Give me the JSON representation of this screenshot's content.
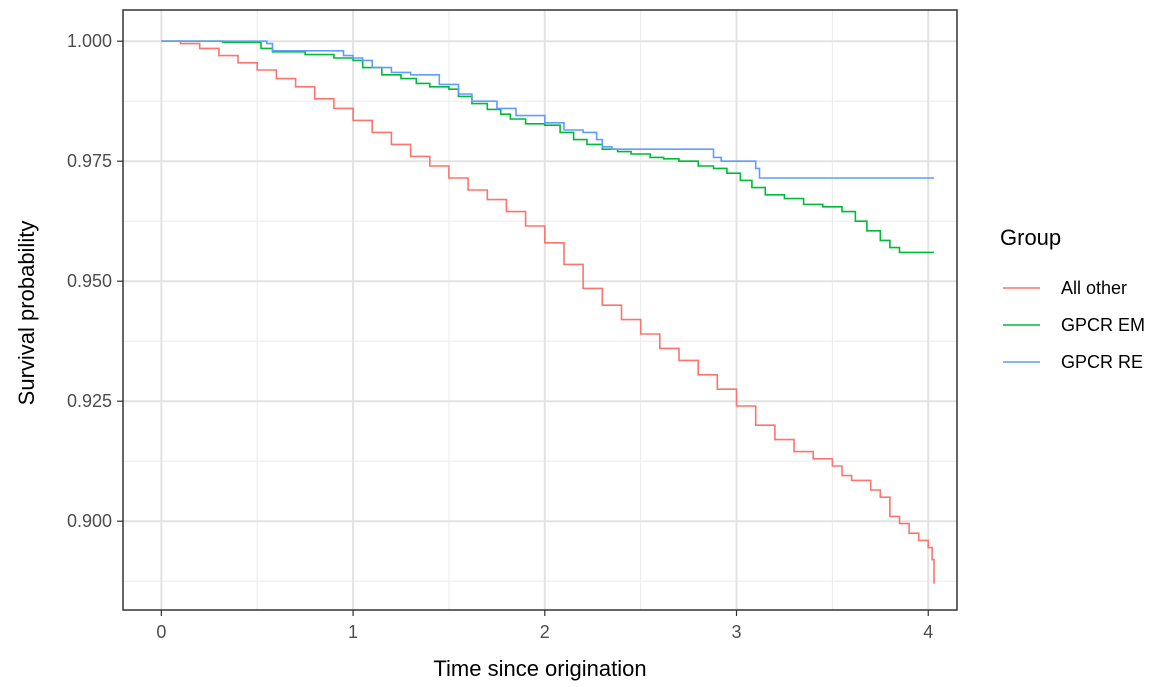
{
  "chart_data": {
    "type": "line",
    "subtype": "step",
    "title": "",
    "xlabel": "Time since origination",
    "ylabel": "Survival probability",
    "xlim": [
      -0.2,
      4.15
    ],
    "ylim": [
      0.8815,
      1.0065
    ],
    "xticks": [
      0,
      1,
      2,
      3,
      4
    ],
    "yticks": [
      0.9,
      0.925,
      0.95,
      0.975,
      1.0
    ],
    "ytick_labels": [
      "0.900",
      "0.925",
      "0.950",
      "0.975",
      "1.000"
    ],
    "xtick_labels": [
      "0",
      "1",
      "2",
      "3",
      "4"
    ],
    "grid": true,
    "legend": {
      "title": "Group",
      "position": "right",
      "entries": [
        "All other",
        "GPCR EM",
        "GPCR RE"
      ]
    },
    "series": [
      {
        "name": "All other",
        "color": "#F8766D",
        "x": [
          0,
          0.1,
          0.2,
          0.3,
          0.4,
          0.5,
          0.6,
          0.7,
          0.8,
          0.9,
          1.0,
          1.1,
          1.2,
          1.3,
          1.4,
          1.5,
          1.6,
          1.7,
          1.8,
          1.9,
          2.0,
          2.1,
          2.2,
          2.3,
          2.4,
          2.5,
          2.6,
          2.7,
          2.8,
          2.9,
          3.0,
          3.1,
          3.2,
          3.3,
          3.4,
          3.5,
          3.55,
          3.6,
          3.7,
          3.75,
          3.8,
          3.85,
          3.9,
          3.95,
          4.0,
          4.02,
          4.03
        ],
        "y": [
          1.0,
          0.9995,
          0.9985,
          0.997,
          0.9955,
          0.994,
          0.9922,
          0.9905,
          0.988,
          0.986,
          0.9835,
          0.981,
          0.9785,
          0.976,
          0.974,
          0.9715,
          0.969,
          0.967,
          0.9645,
          0.9615,
          0.958,
          0.9535,
          0.9485,
          0.945,
          0.942,
          0.939,
          0.936,
          0.9335,
          0.9305,
          0.9275,
          0.924,
          0.92,
          0.917,
          0.9145,
          0.913,
          0.9115,
          0.9095,
          0.9085,
          0.9065,
          0.905,
          0.901,
          0.8995,
          0.8975,
          0.896,
          0.8945,
          0.892,
          0.887
        ]
      },
      {
        "name": "GPCR EM",
        "color": "#00BA38",
        "x": [
          0,
          0.32,
          0.52,
          0.58,
          0.75,
          0.9,
          1.0,
          1.05,
          1.15,
          1.25,
          1.33,
          1.4,
          1.5,
          1.55,
          1.62,
          1.7,
          1.77,
          1.82,
          1.9,
          2.0,
          2.08,
          2.15,
          2.22,
          2.3,
          2.38,
          2.45,
          2.55,
          2.62,
          2.7,
          2.8,
          2.88,
          2.95,
          3.02,
          3.08,
          3.15,
          3.25,
          3.35,
          3.45,
          3.55,
          3.62,
          3.68,
          3.75,
          3.8,
          3.85,
          4.03
        ],
        "y": [
          1.0,
          0.9998,
          0.9985,
          0.9978,
          0.9972,
          0.9965,
          0.996,
          0.9945,
          0.993,
          0.9922,
          0.9912,
          0.9905,
          0.99,
          0.9885,
          0.987,
          0.9858,
          0.9848,
          0.9838,
          0.9828,
          0.9825,
          0.981,
          0.9795,
          0.9785,
          0.9775,
          0.977,
          0.9765,
          0.9758,
          0.9755,
          0.975,
          0.974,
          0.9735,
          0.9725,
          0.971,
          0.9695,
          0.968,
          0.9672,
          0.966,
          0.9655,
          0.9645,
          0.9625,
          0.9605,
          0.9585,
          0.957,
          0.956,
          0.956
        ]
      },
      {
        "name": "GPCR RE",
        "color": "#619CFF",
        "x": [
          0,
          0.55,
          0.58,
          0.95,
          1.0,
          1.05,
          1.1,
          1.2,
          1.3,
          1.45,
          1.55,
          1.62,
          1.75,
          1.85,
          2.0,
          2.1,
          2.2,
          2.27,
          2.3,
          2.35,
          2.88,
          2.92,
          3.1,
          3.12,
          4.03
        ],
        "y": [
          1.0,
          0.9995,
          0.998,
          0.997,
          0.9965,
          0.996,
          0.9945,
          0.9935,
          0.993,
          0.991,
          0.989,
          0.9875,
          0.986,
          0.9845,
          0.983,
          0.9815,
          0.981,
          0.9795,
          0.978,
          0.9775,
          0.9758,
          0.975,
          0.9735,
          0.9715,
          0.9715
        ]
      }
    ]
  }
}
